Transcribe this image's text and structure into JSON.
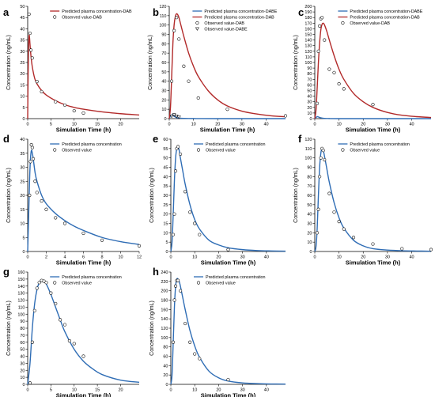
{
  "colors": {
    "red": "#b22a2a",
    "blue": "#2f6db5",
    "axis": "#000000"
  },
  "chart_data": [
    {
      "panel": "a",
      "type": "line",
      "xlabel": "Simulation Time (h)",
      "ylabel": "Concentration (ng/mL)",
      "xlim": [
        0,
        24
      ],
      "ylim": [
        0,
        50
      ],
      "xticks": [
        0,
        5,
        10,
        15,
        20
      ],
      "yticks": [
        0,
        5,
        10,
        15,
        20,
        25,
        30,
        35,
        40,
        45,
        50
      ],
      "legend_pos": "top-right",
      "series": [
        {
          "name": "Predicted plasma concentration-DAB",
          "kind": "line",
          "color": "red",
          "x": [
            0,
            0.1,
            0.2,
            0.3,
            0.4,
            0.5,
            0.7,
            1,
            1.5,
            2,
            3,
            4,
            6,
            8,
            10,
            12,
            16,
            20,
            24
          ],
          "y": [
            0,
            20,
            32,
            37,
            36,
            33,
            28,
            23,
            18,
            15.5,
            12.5,
            10.5,
            8,
            6.2,
            5,
            4.2,
            3,
            2.2,
            1.6
          ]
        },
        {
          "name": "Observed value-DAB",
          "kind": "circle",
          "x": [
            0.3,
            0.5,
            0.7,
            1,
            2,
            3,
            6,
            8,
            10,
            12
          ],
          "y": [
            46.5,
            38,
            30.5,
            27,
            16.5,
            12,
            7.5,
            6,
            3.5,
            2.5
          ]
        }
      ]
    },
    {
      "panel": "b",
      "type": "line",
      "xlabel": "Simulation Time (h)",
      "ylabel": "Concentration (ng/mL)",
      "xlim": [
        0,
        48
      ],
      "ylim": [
        0,
        120
      ],
      "xticks": [
        0,
        10,
        20,
        30,
        40
      ],
      "yticks": [
        0,
        10,
        20,
        30,
        40,
        50,
        60,
        70,
        80,
        90,
        100,
        110,
        120
      ],
      "legend_pos": "top-right",
      "series": [
        {
          "name": "Predicted plasma concentration-DABE",
          "kind": "line",
          "color": "blue",
          "x": [
            0,
            0.5,
            1,
            1.5,
            2,
            3,
            4,
            6,
            10,
            20,
            48
          ],
          "y": [
            0,
            2.5,
            4,
            3.5,
            2.5,
            1.2,
            0.6,
            0.3,
            0.1,
            0,
            0
          ]
        },
        {
          "name": "Predicted plasma concentration-DAB",
          "kind": "line",
          "color": "red",
          "x": [
            0,
            0.5,
            1,
            1.5,
            2,
            2.5,
            3,
            3.5,
            4,
            5,
            6,
            8,
            10,
            12,
            16,
            20,
            24,
            30,
            36,
            42,
            48
          ],
          "y": [
            0,
            12,
            45,
            80,
            100,
            109,
            112,
            111,
            108,
            98,
            88,
            70,
            56,
            45,
            30,
            20,
            13.5,
            8,
            5,
            3,
            2
          ]
        },
        {
          "name": "Observed value-DAB",
          "kind": "circle",
          "x": [
            1,
            2,
            3,
            4,
            6,
            8,
            12,
            24,
            48
          ],
          "y": [
            40,
            94,
            108,
            85,
            56,
            40,
            22,
            10,
            3
          ]
        },
        {
          "name": "Observed value-DABE",
          "kind": "triangle",
          "x": [
            1,
            2,
            3,
            4
          ],
          "y": [
            2.5,
            4,
            2.5,
            1.5
          ]
        }
      ]
    },
    {
      "panel": "c",
      "type": "line",
      "xlabel": "Simulation Time (h)",
      "ylabel": "Concentration (ng/mL)",
      "xlim": [
        0,
        48
      ],
      "ylim": [
        0,
        200
      ],
      "xticks": [
        0,
        10,
        20,
        30,
        40
      ],
      "yticks": [
        0,
        10,
        20,
        30,
        40,
        50,
        60,
        70,
        80,
        90,
        100,
        110,
        120,
        130,
        140,
        150,
        160,
        170,
        180,
        190,
        200
      ],
      "legend_pos": "top-right",
      "series": [
        {
          "name": "Predicted plasma concentration-DABE",
          "kind": "line",
          "color": "blue",
          "x": [
            0,
            0.5,
            1,
            1.5,
            2,
            3,
            4,
            6,
            10,
            48
          ],
          "y": [
            0,
            2,
            3.5,
            3,
            2,
            1,
            0.5,
            0.2,
            0,
            0
          ]
        },
        {
          "name": "Predicted plasma concentration-DAB",
          "kind": "line",
          "color": "red",
          "x": [
            0,
            0.5,
            1,
            1.5,
            2,
            2.5,
            3,
            3.5,
            4,
            5,
            6,
            8,
            10,
            12,
            16,
            20,
            24,
            30,
            36,
            42,
            48
          ],
          "y": [
            0,
            15,
            55,
            100,
            135,
            158,
            168,
            170,
            167,
            155,
            140,
            112,
            88,
            70,
            45,
            30,
            20,
            11,
            6,
            3.5,
            2
          ]
        },
        {
          "name": "Observed value-DAB",
          "kind": "circle",
          "x": [
            1,
            1.5,
            2,
            2.5,
            3,
            4,
            6,
            8,
            10,
            12,
            24
          ],
          "y": [
            27,
            120,
            165,
            178,
            180,
            140,
            88,
            82,
            62,
            53,
            25
          ]
        }
      ]
    },
    {
      "panel": "d",
      "type": "line",
      "xlabel": "Simulation Time (h)",
      "ylabel": "Concentration (ng/mL)",
      "xlim": [
        0,
        12
      ],
      "ylim": [
        0,
        40
      ],
      "xticks": [
        0,
        2,
        4,
        6,
        8,
        10,
        12
      ],
      "yticks": [
        0,
        5,
        10,
        15,
        20,
        25,
        30,
        35,
        40
      ],
      "legend_pos": "top-right",
      "series": [
        {
          "name": "Predicted plasma concentration",
          "kind": "line",
          "color": "blue",
          "x": [
            0,
            0.1,
            0.2,
            0.3,
            0.4,
            0.5,
            0.6,
            0.8,
            1,
            1.5,
            2,
            3,
            4,
            5,
            6,
            8,
            10,
            12
          ],
          "y": [
            0,
            12,
            25,
            33,
            36,
            35,
            33,
            28,
            25,
            20,
            17,
            13.5,
            11,
            9,
            7.5,
            5,
            3.5,
            2.5
          ]
        },
        {
          "name": "Observed value",
          "kind": "circle",
          "x": [
            0.2,
            0.3,
            0.4,
            0.5,
            0.6,
            0.8,
            1,
            1.5,
            2,
            3,
            4,
            6,
            8,
            12
          ],
          "y": [
            20,
            32,
            38,
            37,
            33,
            25,
            21,
            18,
            15,
            12,
            10,
            6.5,
            4,
            2
          ]
        }
      ]
    },
    {
      "panel": "e",
      "type": "line",
      "xlabel": "Simulation Time (h)",
      "ylabel": "Concentration (ng/mL)",
      "xlim": [
        0,
        48
      ],
      "ylim": [
        0,
        60
      ],
      "xticks": [
        0,
        10,
        20,
        30,
        40
      ],
      "yticks": [
        0,
        5,
        10,
        15,
        20,
        25,
        30,
        35,
        40,
        45,
        50,
        55,
        60
      ],
      "legend_pos": "top-right",
      "series": [
        {
          "name": "Predicted plasma concentration",
          "kind": "line",
          "color": "blue",
          "x": [
            0,
            0.5,
            1,
            1.5,
            2,
            2.5,
            3,
            3.5,
            4,
            5,
            6,
            8,
            10,
            12,
            16,
            20,
            24,
            30,
            36,
            42,
            48
          ],
          "y": [
            0,
            5,
            20,
            38,
            50,
            55,
            56,
            54,
            50,
            43,
            36,
            25,
            17,
            12,
            6,
            3.5,
            2,
            1,
            0.5,
            0.3,
            0.2
          ]
        },
        {
          "name": "Observed value",
          "kind": "circle",
          "x": [
            1,
            1.5,
            2,
            2.5,
            3,
            4,
            6,
            8,
            10,
            12,
            24
          ],
          "y": [
            9,
            20,
            43,
            55,
            56,
            52,
            32,
            21,
            15,
            9,
            1
          ]
        }
      ]
    },
    {
      "panel": "f",
      "type": "line",
      "xlabel": "Simulation Time (h)",
      "ylabel": "Concentration (ng/mL)",
      "xlim": [
        0,
        48
      ],
      "ylim": [
        0,
        120
      ],
      "xticks": [
        0,
        10,
        20,
        30,
        40
      ],
      "yticks": [
        0,
        10,
        20,
        30,
        40,
        50,
        60,
        70,
        80,
        90,
        100,
        110,
        120
      ],
      "legend_pos": "top-right",
      "series": [
        {
          "name": "Predicted plasma concentration",
          "kind": "line",
          "color": "blue",
          "x": [
            0,
            0.5,
            1,
            1.5,
            2,
            2.5,
            3,
            3.5,
            4,
            5,
            6,
            8,
            10,
            12,
            16,
            20,
            24,
            30,
            36,
            42,
            48
          ],
          "y": [
            0,
            5,
            25,
            60,
            90,
            105,
            110,
            108,
            102,
            88,
            74,
            52,
            36,
            25,
            12,
            6,
            3,
            1.5,
            0.8,
            0.5,
            0.3
          ]
        },
        {
          "name": "Observed value",
          "kind": "circle",
          "x": [
            1,
            1.5,
            2,
            2.5,
            3,
            3.5,
            4,
            6,
            8,
            10,
            12,
            16,
            24,
            36,
            48
          ],
          "y": [
            20,
            45,
            80,
            100,
            110,
            108,
            98,
            62,
            42,
            32,
            24,
            15,
            8,
            3,
            2
          ]
        }
      ]
    },
    {
      "panel": "g",
      "type": "line",
      "xlabel": "Simulation Time (h)",
      "ylabel": "Concentration (ng/mL)",
      "xlim": [
        0,
        24
      ],
      "ylim": [
        0,
        160
      ],
      "xticks": [
        0,
        5,
        10,
        15,
        20
      ],
      "yticks": [
        0,
        10,
        20,
        30,
        40,
        50,
        60,
        70,
        80,
        90,
        100,
        110,
        120,
        130,
        140,
        150,
        160
      ],
      "legend_pos": "top-right",
      "series": [
        {
          "name": "Predicted plasma concentration",
          "kind": "line",
          "color": "blue",
          "x": [
            0,
            0.5,
            1,
            1.5,
            2,
            2.5,
            3,
            3.5,
            4,
            5,
            6,
            7,
            8,
            10,
            12,
            14,
            16,
            20,
            24
          ],
          "y": [
            0,
            30,
            80,
            115,
            135,
            145,
            148,
            147,
            143,
            128,
            110,
            92,
            75,
            50,
            33,
            22,
            14,
            6,
            3
          ]
        },
        {
          "name": "Observed value",
          "kind": "circle",
          "x": [
            0.5,
            1,
            1.5,
            2,
            2.5,
            3,
            3.5,
            4,
            5,
            6,
            7,
            8,
            9,
            10,
            12
          ],
          "y": [
            2,
            60,
            105,
            137,
            145,
            148,
            147,
            145,
            130,
            115,
            92,
            85,
            62,
            58,
            40
          ]
        }
      ]
    },
    {
      "panel": "h",
      "type": "line",
      "xlabel": "Simulation Time (h)",
      "ylabel": "Concentration (ng/mL)",
      "xlim": [
        0,
        48
      ],
      "ylim": [
        0,
        240
      ],
      "xticks": [
        0,
        10,
        20,
        30,
        40
      ],
      "yticks": [
        0,
        20,
        40,
        60,
        80,
        100,
        120,
        140,
        160,
        180,
        200,
        220,
        240
      ],
      "legend_pos": "top-right",
      "series": [
        {
          "name": "Predicted plasma concentration",
          "kind": "line",
          "color": "blue",
          "x": [
            0,
            0.5,
            1,
            1.5,
            2,
            2.5,
            3,
            3.5,
            4,
            5,
            6,
            8,
            10,
            12,
            16,
            20,
            24,
            30,
            36,
            42,
            48
          ],
          "y": [
            0,
            20,
            90,
            165,
            210,
            225,
            225,
            220,
            210,
            185,
            160,
            115,
            82,
            58,
            28,
            14,
            7,
            3,
            1.5,
            0.8,
            0.5
          ]
        },
        {
          "name": "Observed value",
          "kind": "circle",
          "x": [
            1,
            1.5,
            2,
            2.5,
            3,
            4,
            6,
            8,
            10,
            12,
            24
          ],
          "y": [
            90,
            180,
            210,
            222,
            222,
            200,
            130,
            90,
            65,
            55,
            10
          ]
        }
      ]
    }
  ]
}
